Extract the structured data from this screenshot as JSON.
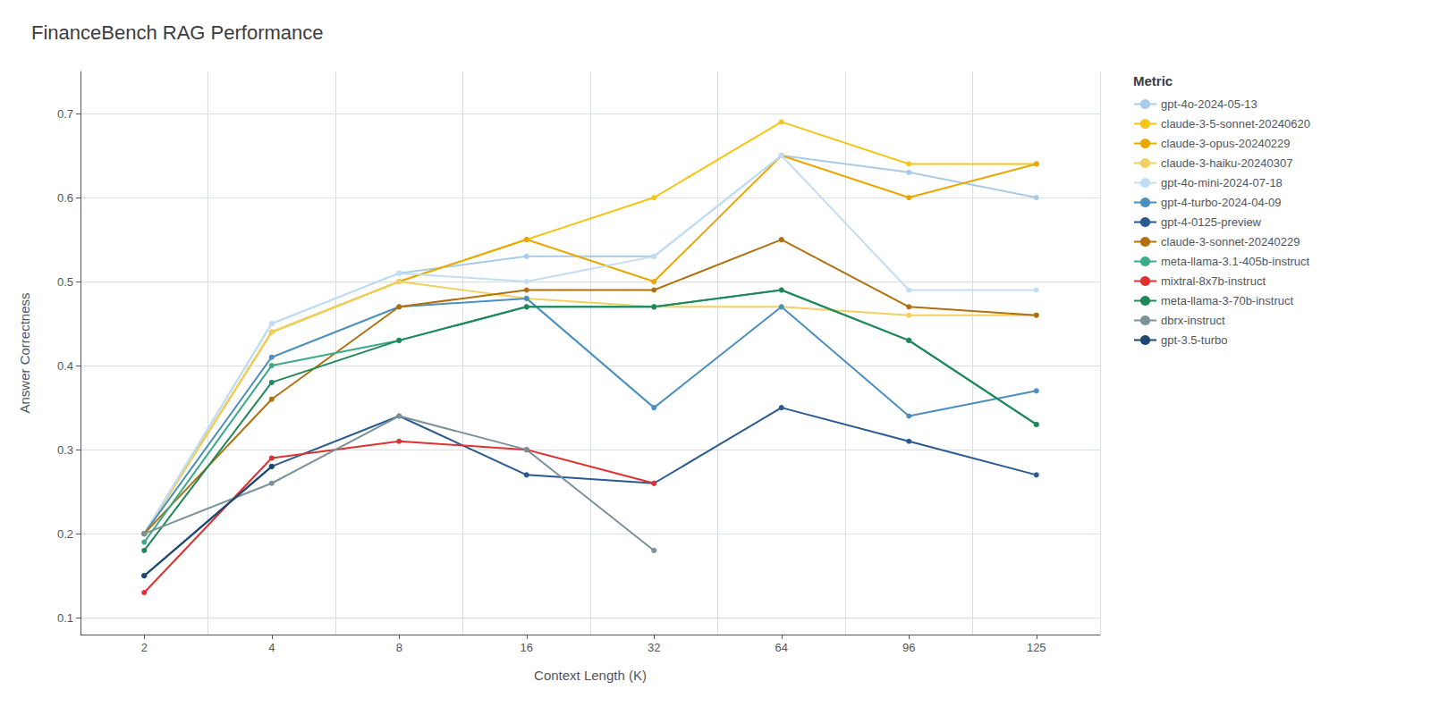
{
  "chart_data": {
    "type": "line",
    "title": "FinanceBench RAG Performance",
    "x_label": "Context Length (K)",
    "y_label": "Answer Correctness",
    "categories": [
      "2",
      "4",
      "8",
      "16",
      "32",
      "64",
      "96",
      "125"
    ],
    "ylim": [
      0.08,
      0.75
    ],
    "yticks": [
      0.1,
      0.2,
      0.3,
      0.4,
      0.5,
      0.6,
      0.7
    ],
    "grid": true,
    "legend": "right",
    "legend_title": "Metric",
    "marker": "circle",
    "series": [
      {
        "name": "gpt-4o-2024-05-13",
        "color": "#a8cce8",
        "values": [
          0.2,
          0.45,
          0.51,
          0.53,
          0.53,
          0.65,
          0.63,
          0.6
        ]
      },
      {
        "name": "claude-3-5-sonnet-20240620",
        "color": "#f5c518",
        "values": [
          0.2,
          0.44,
          0.5,
          0.55,
          0.6,
          0.69,
          0.64,
          0.64
        ]
      },
      {
        "name": "claude-3-opus-20240229",
        "color": "#e8a800",
        "values": [
          0.2,
          0.44,
          0.5,
          0.55,
          0.5,
          0.65,
          0.6,
          0.64
        ]
      },
      {
        "name": "claude-3-haiku-20240307",
        "color": "#f0d060",
        "values": [
          0.2,
          0.44,
          0.5,
          0.48,
          0.47,
          0.47,
          0.46,
          0.46
        ]
      },
      {
        "name": "gpt-4o-mini-2024-07-18",
        "color": "#c0ddf5",
        "values": [
          0.2,
          0.45,
          0.51,
          0.5,
          0.53,
          0.65,
          0.49,
          0.49
        ]
      },
      {
        "name": "gpt-4-turbo-2024-04-09",
        "color": "#4a8fc0",
        "values": [
          0.2,
          0.41,
          0.47,
          0.48,
          0.35,
          0.47,
          0.34,
          0.37
        ]
      },
      {
        "name": "gpt-4-0125-preview",
        "color": "#2a5a90",
        "values": [
          0.15,
          0.28,
          0.34,
          0.27,
          0.26,
          0.35,
          0.31,
          0.27
        ]
      },
      {
        "name": "claude-3-sonnet-20240229",
        "color": "#b07010",
        "values": [
          0.2,
          0.36,
          0.47,
          0.49,
          0.49,
          0.55,
          0.47,
          0.46
        ]
      },
      {
        "name": "meta-llama-3.1-405b-instruct",
        "color": "#3aaa8a",
        "values": [
          0.19,
          0.4,
          0.43,
          0.47,
          0.47,
          0.49,
          0.43,
          0.33
        ]
      },
      {
        "name": "mixtral-8x7b-instruct",
        "color": "#e03030",
        "values": [
          0.13,
          0.29,
          0.31,
          0.3,
          0.26,
          null,
          null,
          null
        ]
      },
      {
        "name": "meta-llama-3-70b-instruct",
        "color": "#208858",
        "values": [
          0.18,
          0.38,
          0.43,
          0.47,
          0.47,
          0.49,
          0.43,
          0.33
        ]
      },
      {
        "name": "dbrx-instruct",
        "color": "#7a9298",
        "values": [
          0.2,
          0.26,
          0.34,
          0.3,
          0.18,
          null,
          null,
          null
        ]
      },
      {
        "name": "gpt-3.5-turbo",
        "color": "#1a4870",
        "values": [
          0.15,
          0.28,
          null,
          null,
          null,
          null,
          null,
          null
        ]
      }
    ]
  }
}
